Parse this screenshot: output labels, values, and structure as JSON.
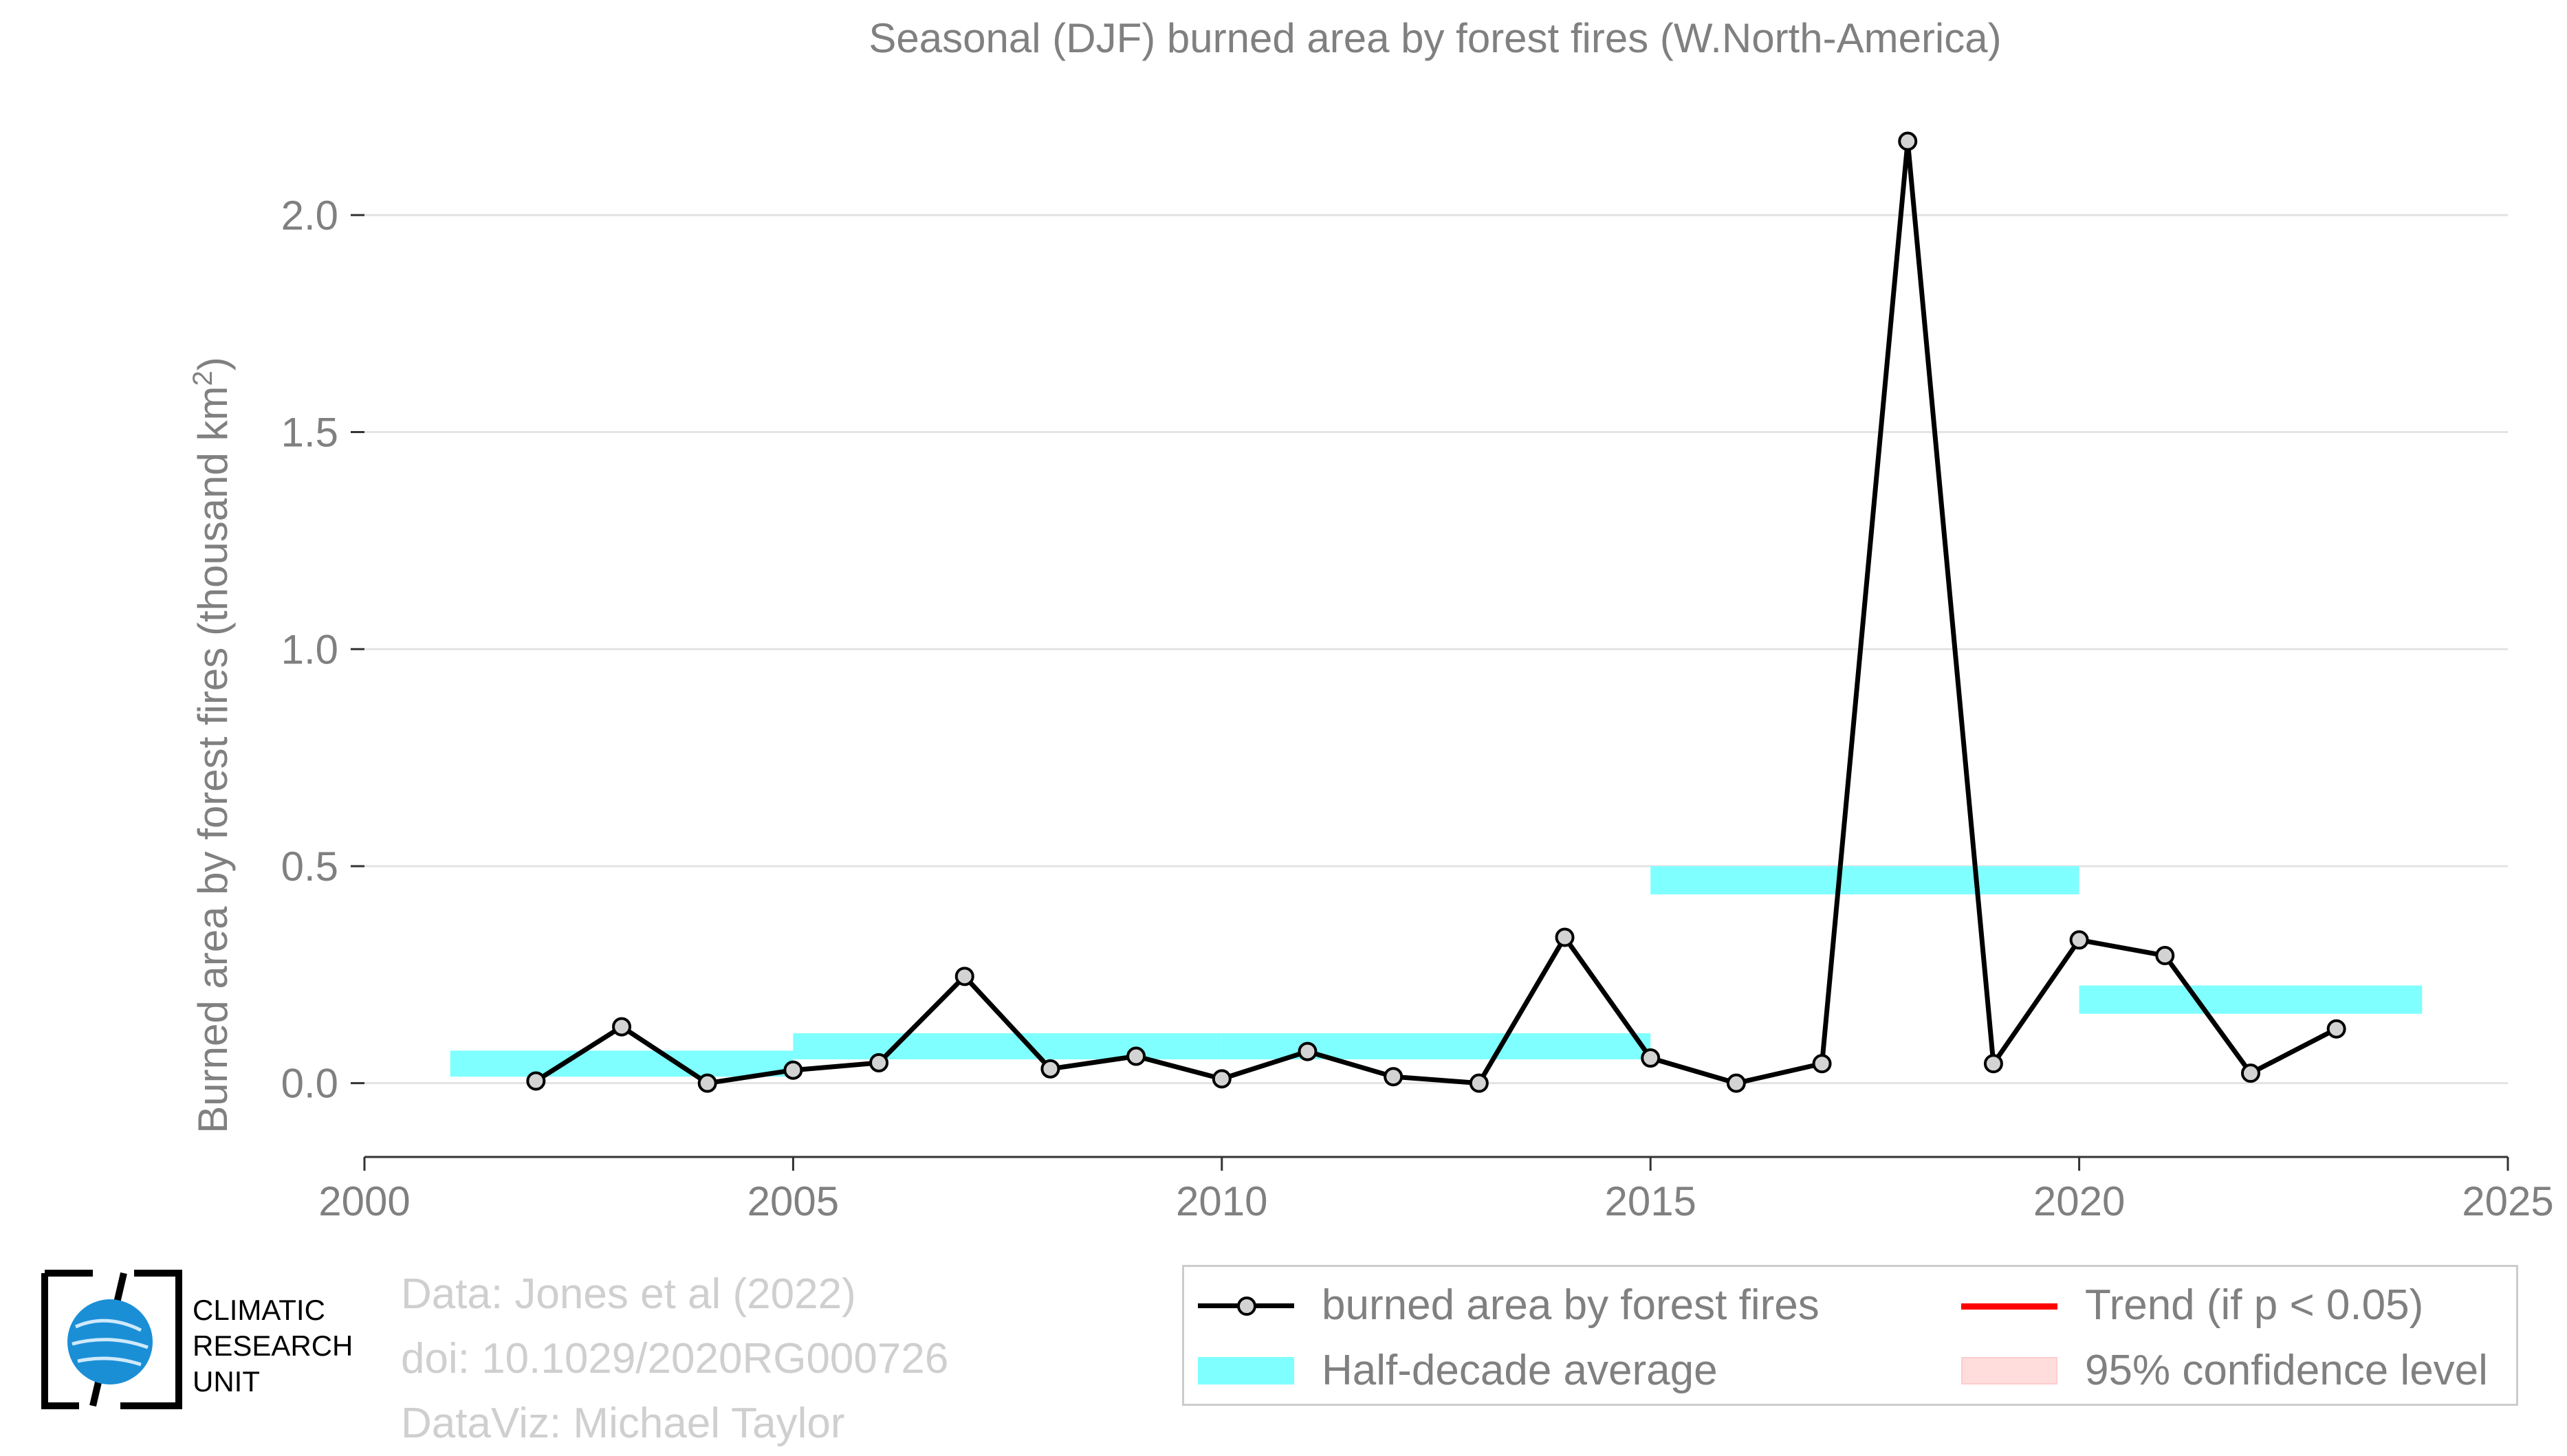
{
  "chart_data": {
    "type": "line",
    "title": "Seasonal (DJF) burned area by forest fires (W.North-America)",
    "ylabel_main": "Burned area by forest fires (thousand km",
    "ylabel_sup": "2",
    "ylabel_close": ")",
    "xlim": [
      2000,
      2025
    ],
    "ylim": [
      -0.17,
      2.25
    ],
    "x_ticks": [
      2000,
      2005,
      2010,
      2015,
      2020,
      2025
    ],
    "y_ticks": [
      0.0,
      0.5,
      1.0,
      1.5,
      2.0
    ],
    "y_tick_labels": [
      "0.0",
      "0.5",
      "1.0",
      "1.5",
      "2.0"
    ],
    "grid": "horizontal",
    "series": [
      {
        "name": "burned area by forest fires",
        "color": "#000000",
        "marker_fill": "#d3d3d3",
        "x": [
          2002,
          2003,
          2004,
          2005,
          2006,
          2007,
          2008,
          2009,
          2010,
          2011,
          2012,
          2013,
          2014,
          2015,
          2016,
          2017,
          2018,
          2019,
          2020,
          2021,
          2022,
          2023
        ],
        "y": [
          0.005,
          0.13,
          0.0,
          0.03,
          0.047,
          0.246,
          0.033,
          0.062,
          0.01,
          0.073,
          0.015,
          0.0,
          0.336,
          0.058,
          0.0,
          0.045,
          2.17,
          0.045,
          0.33,
          0.294,
          0.023,
          0.125
        ]
      }
    ],
    "half_decade_average": {
      "name": "Half-decade average",
      "color": "#7fffff",
      "bars": [
        {
          "x0": 2001,
          "x1": 2005,
          "y0": 0.015,
          "y1": 0.075
        },
        {
          "x0": 2005,
          "x1": 2010,
          "y0": 0.055,
          "y1": 0.115
        },
        {
          "x0": 2010,
          "x1": 2015,
          "y0": 0.055,
          "y1": 0.115
        },
        {
          "x0": 2015,
          "x1": 2020,
          "y0": 0.435,
          "y1": 0.5
        },
        {
          "x0": 2020,
          "x1": 2024,
          "y0": 0.16,
          "y1": 0.225
        }
      ]
    },
    "legend": "bottom-right",
    "legend_entries": [
      {
        "label": "burned area by forest fires",
        "key": "line-marker",
        "color": "#000000"
      },
      {
        "label": "Trend (if p < 0.05)",
        "key": "line",
        "color": "#ff0000"
      },
      {
        "label": "Half-decade average",
        "key": "band",
        "color": "#7fffff"
      },
      {
        "label": "95% confidence level",
        "key": "band",
        "color": "#ffdddd"
      }
    ]
  },
  "credits": {
    "line1": "Data: Jones et al (2022)",
    "line2": "doi: 10.1029/2020RG000726",
    "line3": "DataViz: Michael Taylor"
  },
  "logo": {
    "line1": "CLIMATIC",
    "line2": "RESEARCH",
    "line3": "UNIT"
  }
}
